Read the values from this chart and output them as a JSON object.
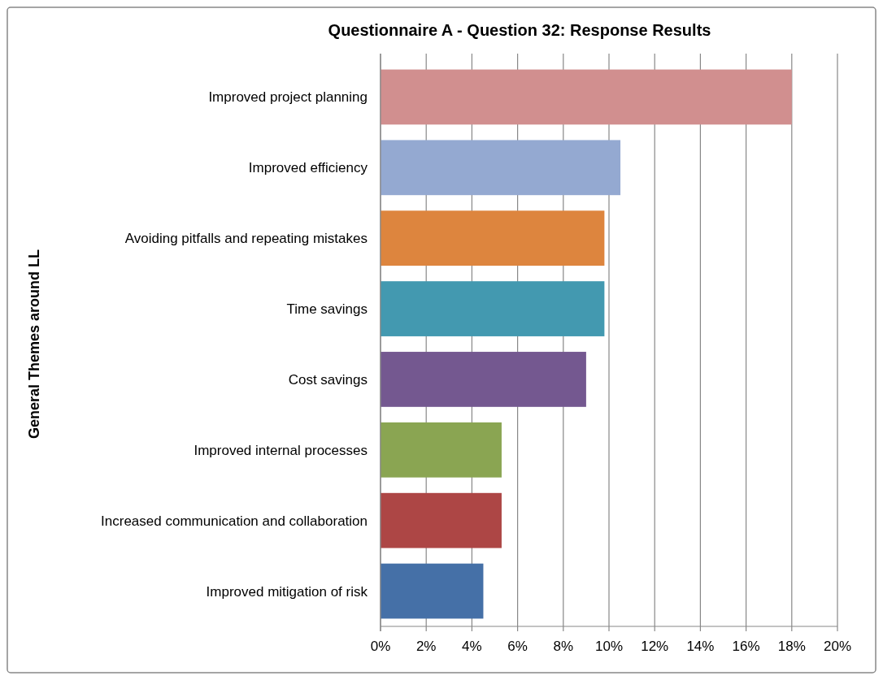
{
  "chart_data": {
    "type": "bar",
    "orientation": "horizontal",
    "title": "Questionnaire A - Question 32: Response Results",
    "ylabel": "General Themes around LL",
    "categories": [
      "Improved project planning",
      "Improved efficiency",
      "Avoiding pitfalls and repeating mistakes",
      "Time savings",
      "Cost savings",
      "Improved internal processes",
      "Increased communication and collaboration",
      "Improved mitigation of risk"
    ],
    "values": [
      18,
      10.5,
      9.8,
      9.8,
      9.0,
      5.3,
      5.3,
      4.5
    ],
    "colors": [
      "#d18f8f",
      "#94a9d1",
      "#dd853e",
      "#4399b0",
      "#745890",
      "#8aa552",
      "#ad4645",
      "#4570a7"
    ],
    "xlim": [
      0,
      20
    ],
    "xticks": [
      {
        "value": 0,
        "label": "0%"
      },
      {
        "value": 2,
        "label": "2%"
      },
      {
        "value": 4,
        "label": "4%"
      },
      {
        "value": 6,
        "label": "6%"
      },
      {
        "value": 8,
        "label": "8%"
      },
      {
        "value": 10,
        "label": "10%"
      },
      {
        "value": 12,
        "label": "12%"
      },
      {
        "value": 14,
        "label": "14%"
      },
      {
        "value": 16,
        "label": "16%"
      },
      {
        "value": 18,
        "label": "18%"
      },
      {
        "value": 20,
        "label": "20%"
      }
    ],
    "grid": "x"
  }
}
